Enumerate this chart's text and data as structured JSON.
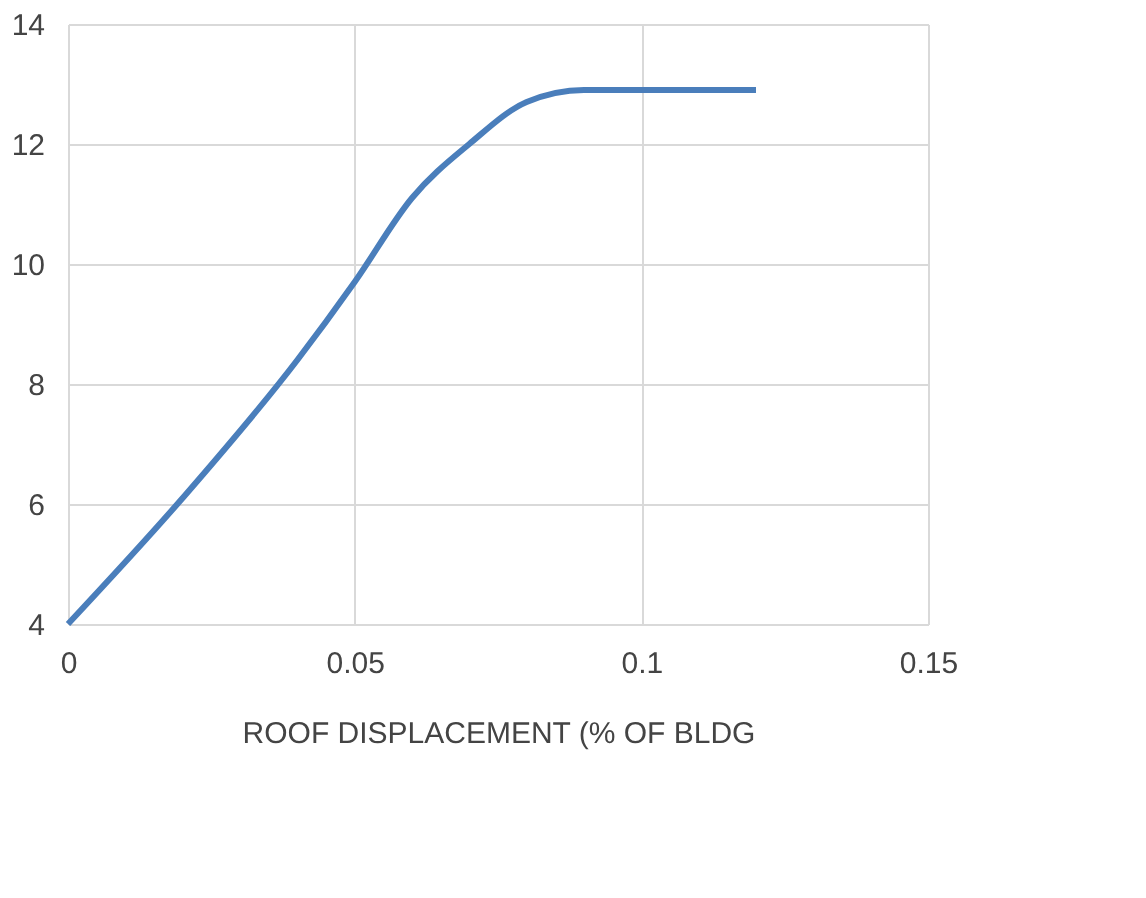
{
  "chart_data": {
    "type": "line",
    "xlabel": "ROOF DISPLACEMENT   (% OF BLDG",
    "x": [
      0,
      0.02,
      0.04,
      0.05,
      0.06,
      0.07,
      0.08,
      0.09,
      0.1,
      0.12
    ],
    "series": [
      {
        "color": "#4a7ebb",
        "values": [
          4,
          6.1,
          8.4,
          9.7,
          11.1,
          12.0,
          12.7,
          12.9,
          12.9,
          12.9
        ]
      }
    ],
    "xlim": [
      0,
      0.15
    ],
    "xticks": [
      0,
      0.05,
      0.1,
      0.15
    ],
    "ylim": [
      4,
      14
    ],
    "yticks": [
      4,
      6,
      8,
      10,
      12,
      14
    ],
    "grid": true,
    "marker": "none",
    "line_style": "solid"
  }
}
